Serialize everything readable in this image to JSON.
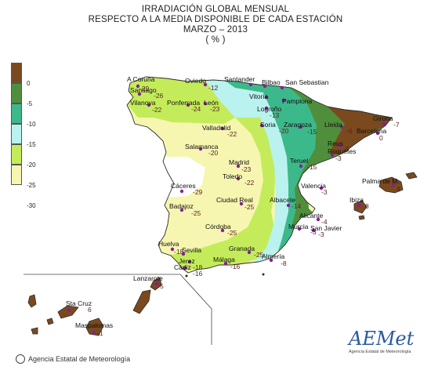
{
  "title": {
    "line1": "IRRADIACIÓN GLOBAL MENSUAL",
    "line2": "RESPECTO A LA MEDIA DISPONIBLE DE CADA ESTACIÓN",
    "line3": "MARZO – 2013",
    "line4": "( % )"
  },
  "legend": {
    "labels": [
      "0",
      "-5",
      "-10",
      "-15",
      "-20",
      "-25",
      "-30"
    ],
    "colors": [
      "#7a4a1e",
      "#4f8f3c",
      "#3cb98a",
      "#b9f2ee",
      "#c4ec5a",
      "#f6f6b0",
      "#ffffff"
    ]
  },
  "map_colors": {
    "sea_line": "#444444",
    "coast": "#2a2a2a",
    "point": "#8a1aa0"
  },
  "stations": [
    {
      "name": "A Coruña",
      "value": "-29"
    },
    {
      "name": "Santiago",
      "value": "-26"
    },
    {
      "name": "Vilanova",
      "value": "-22"
    },
    {
      "name": "Oviedo",
      "value": "-12"
    },
    {
      "name": "Ponferrada",
      "value": "-24"
    },
    {
      "name": "León",
      "value": "-23"
    },
    {
      "name": "Santander",
      "value": ""
    },
    {
      "name": "Bilbao",
      "value": ""
    },
    {
      "name": "San Sebastian",
      "value": ""
    },
    {
      "name": "Vitoria",
      "value": ""
    },
    {
      "name": "Pamplona",
      "value": ""
    },
    {
      "name": "Logroño",
      "value": "-13"
    },
    {
      "name": "Valladolid",
      "value": "-22"
    },
    {
      "name": "Soria",
      "value": "-20"
    },
    {
      "name": "Zaragoza",
      "value": "-15"
    },
    {
      "name": "Lleida",
      "value": "-6"
    },
    {
      "name": "Girona",
      "value": "-7"
    },
    {
      "name": "Barcelona",
      "value": "0"
    },
    {
      "name": "Reus",
      "value": "-5"
    },
    {
      "name": "Roquetes",
      "value": "-3"
    },
    {
      "name": "Salamanca",
      "value": "-20"
    },
    {
      "name": "Madrid",
      "value": "-23"
    },
    {
      "name": "Teruel",
      "value": "-15"
    },
    {
      "name": "Toledo",
      "value": "-22"
    },
    {
      "name": "Cáceres",
      "value": "-29"
    },
    {
      "name": "Palma de M.",
      "value": "4"
    },
    {
      "name": "Valencia",
      "value": "-3"
    },
    {
      "name": "Ibiza",
      "value": "8"
    },
    {
      "name": "Badajoz",
      "value": "-25"
    },
    {
      "name": "Ciudad Real",
      "value": "-25"
    },
    {
      "name": "Albacete",
      "value": "-14"
    },
    {
      "name": "Alicante",
      "value": "-4"
    },
    {
      "name": "Murcia",
      "value": "-3"
    },
    {
      "name": "San Javier",
      "value": "-3"
    },
    {
      "name": "Córdoba",
      "value": "-25"
    },
    {
      "name": "Huelva",
      "value": "-18"
    },
    {
      "name": "Sevilla",
      "value": ""
    },
    {
      "name": "Granada",
      "value": "-25"
    },
    {
      "name": "Almería",
      "value": "-8"
    },
    {
      "name": "Málaga",
      "value": "-16"
    },
    {
      "name": "Jerez",
      "value": "-18"
    },
    {
      "name": "Cádiz",
      "value": "-16"
    },
    {
      "name": "Lanzarote",
      "value": "5"
    },
    {
      "name": "Sta Cruz",
      "value": "6"
    },
    {
      "name": "Maspalomas",
      "value": "-1"
    }
  ],
  "footer": {
    "agency": "Agencia Estatal de Meteorología"
  },
  "aemet_logo": {
    "brand": "AEMet",
    "sub": "Agencia Estatal de Meteorología"
  }
}
